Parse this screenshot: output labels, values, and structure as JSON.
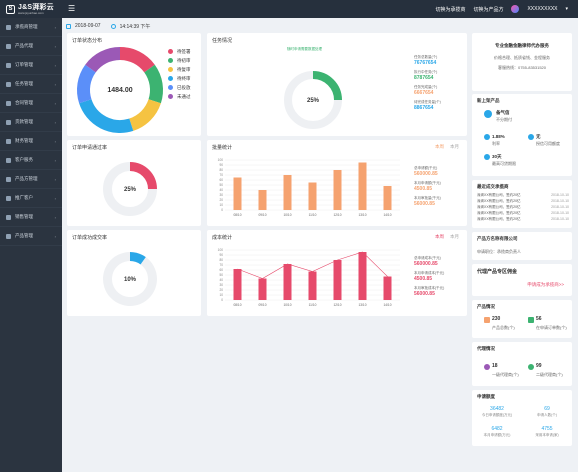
{
  "brand": {
    "name": "J&S湃彩云",
    "sub": "www.jsyunhao.com"
  },
  "header": {
    "link1": "切换为承揽商",
    "link2": "切换为产品方",
    "username": "XXXXXXXXX"
  },
  "datebar": {
    "date": "2018-09-07",
    "time": "14:14:39 下午"
  },
  "sidebar": {
    "items": [
      {
        "label": "承揽商管理"
      },
      {
        "label": "产品代理"
      },
      {
        "label": "订单管理"
      },
      {
        "label": "任务管理"
      },
      {
        "label": "合同管理"
      },
      {
        "label": "货款管理"
      },
      {
        "label": "财务管理"
      },
      {
        "label": "客户服务"
      },
      {
        "label": "产品方管理"
      },
      {
        "label": "推广客户"
      },
      {
        "label": "销售管理"
      },
      {
        "label": "产品管理"
      }
    ]
  },
  "order_status": {
    "title": "订单状态分布",
    "center": "1484.00",
    "legend": [
      "待签署",
      "待初审",
      "待复审",
      "待终审",
      "已投放",
      "未通过"
    ],
    "colors": [
      "#e64a6b",
      "#3cb371",
      "#f5c342",
      "#2aa7e8",
      "#5b8ff9",
      "#9b59b6"
    ],
    "chart_data": {
      "type": "pie",
      "categories": [
        "待签署",
        "待初审",
        "待复审",
        "待终审",
        "已投放",
        "未通过"
      ],
      "values": [
        15,
        15,
        15,
        25,
        15,
        15
      ]
    }
  },
  "task_status": {
    "title": "任务情况",
    "badge": "随时申请需要数据处理",
    "center": "25%",
    "items": [
      {
        "label": "任务总数量(个)",
        "value": "76767654"
      },
      {
        "label": "执行中任务(个)",
        "value": "8787654"
      },
      {
        "label": "任务完成量(个)",
        "value": "6667654"
      },
      {
        "label": "待完成任务量(个)",
        "value": "8867654"
      }
    ],
    "chart_data": {
      "type": "pie",
      "values": [
        25,
        75
      ]
    }
  },
  "order_pass": {
    "title": "订单申请通过率",
    "center": "25%",
    "chart_data": {
      "type": "pie",
      "values": [
        25,
        75
      ]
    }
  },
  "order_convert": {
    "title": "订单成功成交率",
    "center": "10%",
    "chart_data": {
      "type": "pie",
      "values": [
        10,
        90
      ]
    }
  },
  "volume_stats": {
    "title": "批量统计",
    "tab1": "本周",
    "tab2": "本月",
    "info": [
      {
        "label": "总申请额(千元)",
        "value": "560000.85"
      },
      {
        "label": "本月申请额(千元)",
        "value": "4500.85"
      },
      {
        "label": "本月审批量(千元)",
        "value": "56000.85"
      }
    ],
    "chart_data": {
      "type": "bar",
      "categories": [
        "08/10",
        "09/10",
        "10/10",
        "11/10",
        "12/10",
        "13/10",
        "14/10"
      ],
      "values": [
        65,
        40,
        70,
        55,
        80,
        95,
        48
      ],
      "ylim": [
        0,
        100
      ],
      "yticks": [
        "0",
        "10",
        "20",
        "30",
        "40",
        "50",
        "60",
        "70",
        "80",
        "90",
        "100"
      ]
    }
  },
  "cost_stats": {
    "title": "成本统计",
    "tab1": "本周",
    "tab2": "本月",
    "info": [
      {
        "label": "总申请成本(千元)",
        "value": "560000.85"
      },
      {
        "label": "本月申请成本(千元)",
        "value": "4500.85"
      },
      {
        "label": "本月审批成本(千元)",
        "value": "56000.85"
      }
    ],
    "chart_data": {
      "type": "bar",
      "categories": [
        "08/10",
        "09/10",
        "10/10",
        "11/10",
        "12/10",
        "13/10",
        "14/10"
      ],
      "values": [
        62,
        43,
        72,
        57,
        80,
        96,
        47
      ],
      "ylim": [
        0,
        100
      ],
      "yticks": [
        "0",
        "10",
        "20",
        "30",
        "40",
        "50",
        "60",
        "70",
        "80",
        "90",
        "100"
      ]
    }
  },
  "right": {
    "contact": {
      "line1": "专业金融金融律师代办服务",
      "line2": "价格合理、抵质省钱、金程服务",
      "line3": "客服热线：0755-83531520"
    },
    "new_product": {
      "title": "新上架产品",
      "name": "备气信",
      "tag": "不分期付",
      "rate": "1.88%",
      "rate_label": "利率",
      "amount": "无",
      "amount_label": "授信可用额度",
      "days": "30天",
      "days_label": "最高可贷期限"
    },
    "recent": {
      "title": "最近成交承揽商",
      "rows": [
        {
          "text": "深圳XX有限公司，签约20亿",
          "date": "2018-10-10"
        },
        {
          "text": "深圳XX有限公司，签约20亿",
          "date": "2018-10-10"
        },
        {
          "text": "深圳XX有限公司，签约20亿",
          "date": "2018-10-10"
        },
        {
          "text": "深圳XX有限公司，签约20亿",
          "date": "2018-10-10"
        },
        {
          "text": "深圳XX有限公司，签约20亿",
          "date": "2018-10-10"
        }
      ]
    },
    "company": {
      "title": "产品方名称有限公司",
      "sub": "申请职位：承揽商负责人"
    },
    "agent": {
      "title": "代理产品专区佣金",
      "link": "申请成为承揽商>>"
    },
    "product_status": {
      "title": "产品情况",
      "n1": "230",
      "l1": "产品总数(个)",
      "n2": "56",
      "l2": "在申请订单数(个)"
    },
    "agent_status": {
      "title": "代理情况",
      "n1": "18",
      "l1": "一级代理商(个)",
      "n2": "99",
      "l2": "二级代理商(个)"
    },
    "apply": {
      "title": "申请额度",
      "v1": "36482",
      "l1": "今日申请额度(万元)",
      "v2": "69",
      "l2": "申请人数(个)",
      "v3": "6482",
      "l3": "本月申请额(万元)",
      "v4": "4755",
      "l4": "采用本申请(家)"
    }
  }
}
